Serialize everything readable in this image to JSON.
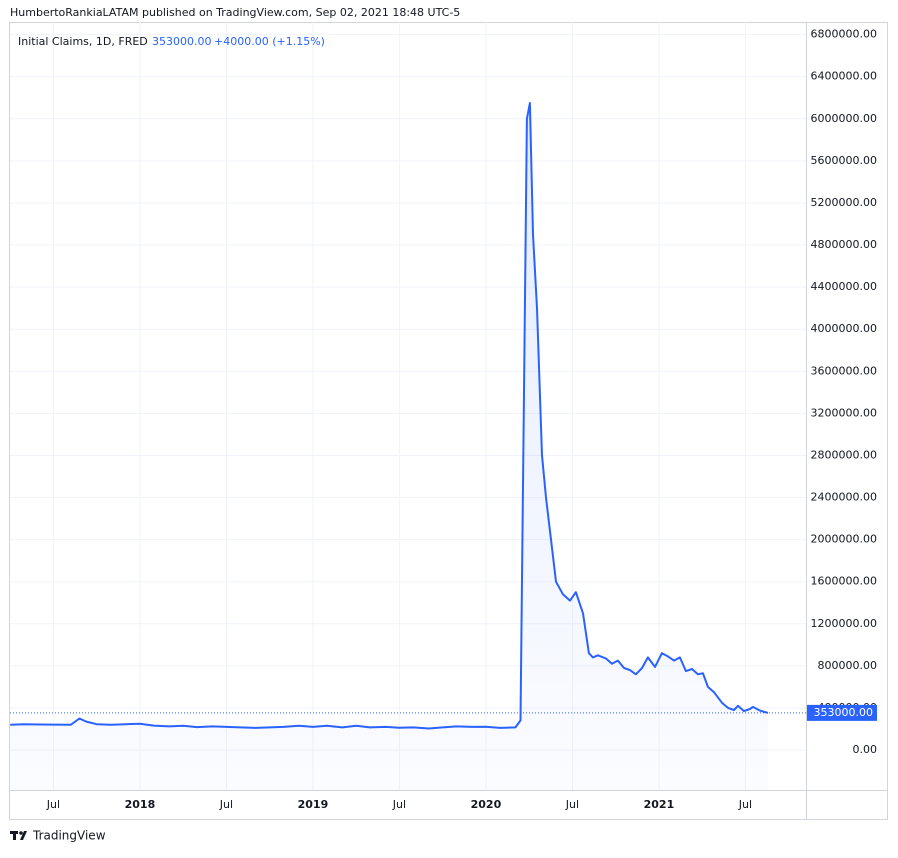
{
  "header": {
    "text": "HumbertoRankiaLATAM published on TradingView.com, Sep 02, 2021 18:48 UTC-5"
  },
  "footer": {
    "brand": "TradingView"
  },
  "chart_data": {
    "type": "area",
    "color": "#2962ff",
    "legend": {
      "name": "Initial Claims, 1D, FRED",
      "last": "353000.00",
      "change": "+4000.00 (+1.15%)"
    },
    "price_line": {
      "value": 353000,
      "label": "353000.00"
    },
    "grid": true,
    "xlim": [
      2017.249,
      2021.85
    ],
    "ylim": [
      -380000,
      6920000
    ],
    "xticks": [
      {
        "value": 2017.5,
        "label": "Jul"
      },
      2018,
      {
        "value": 2018.5,
        "label": "Jul"
      },
      2019,
      {
        "value": 2019.5,
        "label": "Jul"
      },
      2020,
      {
        "value": 2020.5,
        "label": "Jul"
      },
      2021,
      {
        "value": 2021.5,
        "label": "Jul"
      }
    ],
    "yticks": [
      {
        "value": 0,
        "label": "0.00"
      },
      {
        "value": 400000,
        "label": "400000.00"
      },
      {
        "value": 800000,
        "label": "800000.00"
      },
      {
        "value": 1200000,
        "label": "1200000.00"
      },
      {
        "value": 1600000,
        "label": "1600000.00"
      },
      {
        "value": 2000000,
        "label": "2000000.00"
      },
      {
        "value": 2400000,
        "label": "2400000.00"
      },
      {
        "value": 2800000,
        "label": "2800000.00"
      },
      {
        "value": 3200000,
        "label": "3200000.00"
      },
      {
        "value": 3600000,
        "label": "3600000.00"
      },
      {
        "value": 4000000,
        "label": "4000000.00"
      },
      {
        "value": 4400000,
        "label": "4400000.00"
      },
      {
        "value": 4800000,
        "label": "4800000.00"
      },
      {
        "value": 5200000,
        "label": "5200000.00"
      },
      {
        "value": 5600000,
        "label": "5600000.00"
      },
      {
        "value": 6000000,
        "label": "6000000.00"
      },
      {
        "value": 6400000,
        "label": "6400000.00"
      },
      {
        "value": 6800000,
        "label": "6800000.00"
      }
    ],
    "x": [
      2017.25,
      2017.33,
      2017.42,
      2017.5,
      2017.6,
      2017.65,
      2017.69,
      2017.75,
      2017.83,
      2017.92,
      2018.0,
      2018.08,
      2018.17,
      2018.25,
      2018.33,
      2018.42,
      2018.5,
      2018.58,
      2018.67,
      2018.75,
      2018.83,
      2018.92,
      2019.0,
      2019.08,
      2019.17,
      2019.25,
      2019.33,
      2019.42,
      2019.5,
      2019.58,
      2019.67,
      2019.75,
      2019.83,
      2019.92,
      2020.0,
      2020.08,
      2020.17,
      2020.2,
      2020.237,
      2020.254,
      2020.272,
      2020.295,
      2020.324,
      2020.347,
      2020.376,
      2020.405,
      2020.445,
      2020.486,
      2020.52,
      2020.561,
      2020.595,
      2020.618,
      2020.647,
      2020.694,
      2020.728,
      2020.763,
      2020.798,
      2020.832,
      2020.867,
      2020.902,
      2020.936,
      2020.977,
      2021.017,
      2021.052,
      2021.087,
      2021.121,
      2021.156,
      2021.191,
      2021.225,
      2021.254,
      2021.283,
      2021.318,
      2021.364,
      2021.399,
      2021.434,
      2021.457,
      2021.491,
      2021.526,
      2021.543,
      2021.584,
      2021.63
    ],
    "values": [
      240000,
      245000,
      243000,
      242000,
      240000,
      300000,
      270000,
      245000,
      240000,
      245000,
      250000,
      232000,
      225000,
      230000,
      218000,
      225000,
      220000,
      215000,
      210000,
      215000,
      220000,
      230000,
      220000,
      230000,
      215000,
      230000,
      215000,
      220000,
      212000,
      215000,
      205000,
      215000,
      225000,
      220000,
      222000,
      210000,
      215000,
      282000,
      6000000,
      6150000,
      4900000,
      4200000,
      2800000,
      2400000,
      2000000,
      1600000,
      1480000,
      1420000,
      1500000,
      1300000,
      920000,
      880000,
      900000,
      870000,
      820000,
      850000,
      780000,
      760000,
      720000,
      780000,
      880000,
      790000,
      920000,
      890000,
      850000,
      880000,
      750000,
      770000,
      720000,
      730000,
      600000,
      550000,
      450000,
      400000,
      380000,
      420000,
      370000,
      390000,
      410000,
      375000,
      353000
    ]
  }
}
